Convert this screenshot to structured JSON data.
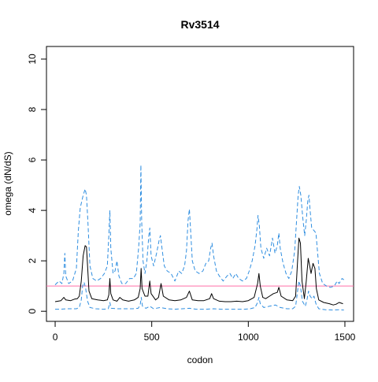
{
  "chart_data": {
    "type": "line",
    "title": "Rv3514",
    "xlabel": "codon",
    "ylabel": "omega (dN/dS)",
    "xlim": [
      -45,
      1545
    ],
    "ylim": [
      -0.4,
      10.5
    ],
    "xticks": [
      0,
      500,
      1000,
      1500
    ],
    "yticks": [
      0,
      2,
      4,
      6,
      8,
      10
    ],
    "grid": false,
    "legend": "none",
    "colors": {
      "estimate": "#000000",
      "bounds": "#2f8ee0",
      "reference": "#ff6fa8"
    },
    "reference_line": {
      "y": 1
    },
    "series": [
      {
        "role": "estimate",
        "points": [
          [
            0,
            0.38
          ],
          [
            30,
            0.42
          ],
          [
            45,
            0.55
          ],
          [
            55,
            0.45
          ],
          [
            80,
            0.42
          ],
          [
            100,
            0.48
          ],
          [
            115,
            0.5
          ],
          [
            125,
            0.6
          ],
          [
            135,
            1.2
          ],
          [
            145,
            2.2
          ],
          [
            155,
            2.6
          ],
          [
            162,
            2.55
          ],
          [
            168,
            1.8
          ],
          [
            175,
            0.8
          ],
          [
            190,
            0.5
          ],
          [
            220,
            0.45
          ],
          [
            250,
            0.42
          ],
          [
            270,
            0.45
          ],
          [
            278,
            0.65
          ],
          [
            283,
            1.3
          ],
          [
            288,
            0.7
          ],
          [
            300,
            0.45
          ],
          [
            320,
            0.4
          ],
          [
            335,
            0.55
          ],
          [
            350,
            0.45
          ],
          [
            380,
            0.4
          ],
          [
            410,
            0.45
          ],
          [
            430,
            0.55
          ],
          [
            440,
            0.9
          ],
          [
            445,
            1.7
          ],
          [
            450,
            0.9
          ],
          [
            465,
            0.6
          ],
          [
            480,
            0.6
          ],
          [
            490,
            1.2
          ],
          [
            497,
            0.7
          ],
          [
            520,
            0.45
          ],
          [
            535,
            0.55
          ],
          [
            548,
            1.1
          ],
          [
            560,
            0.6
          ],
          [
            590,
            0.45
          ],
          [
            620,
            0.42
          ],
          [
            650,
            0.45
          ],
          [
            680,
            0.55
          ],
          [
            695,
            0.8
          ],
          [
            710,
            0.45
          ],
          [
            740,
            0.42
          ],
          [
            770,
            0.42
          ],
          [
            800,
            0.5
          ],
          [
            810,
            0.7
          ],
          [
            820,
            0.5
          ],
          [
            850,
            0.4
          ],
          [
            880,
            0.38
          ],
          [
            910,
            0.38
          ],
          [
            940,
            0.4
          ],
          [
            970,
            0.38
          ],
          [
            1000,
            0.42
          ],
          [
            1030,
            0.55
          ],
          [
            1048,
            1.1
          ],
          [
            1055,
            1.5
          ],
          [
            1062,
            1.0
          ],
          [
            1075,
            0.55
          ],
          [
            1090,
            0.5
          ],
          [
            1110,
            0.6
          ],
          [
            1130,
            0.7
          ],
          [
            1150,
            0.75
          ],
          [
            1158,
            0.95
          ],
          [
            1170,
            0.6
          ],
          [
            1200,
            0.45
          ],
          [
            1230,
            0.42
          ],
          [
            1245,
            0.6
          ],
          [
            1255,
            2.0
          ],
          [
            1262,
            2.9
          ],
          [
            1270,
            2.7
          ],
          [
            1278,
            1.2
          ],
          [
            1290,
            0.5
          ],
          [
            1300,
            1.2
          ],
          [
            1310,
            2.1
          ],
          [
            1318,
            1.8
          ],
          [
            1325,
            1.5
          ],
          [
            1335,
            1.9
          ],
          [
            1345,
            1.7
          ],
          [
            1352,
            0.9
          ],
          [
            1365,
            0.45
          ],
          [
            1390,
            0.35
          ],
          [
            1420,
            0.3
          ],
          [
            1440,
            0.25
          ],
          [
            1455,
            0.28
          ],
          [
            1470,
            0.35
          ],
          [
            1490,
            0.3
          ]
        ]
      },
      {
        "role": "upper",
        "points": [
          [
            0,
            1.05
          ],
          [
            20,
            1.2
          ],
          [
            35,
            1.1
          ],
          [
            45,
            1.5
          ],
          [
            50,
            2.3
          ],
          [
            55,
            1.4
          ],
          [
            70,
            1.1
          ],
          [
            90,
            1.2
          ],
          [
            110,
            1.7
          ],
          [
            120,
            3.2
          ],
          [
            130,
            4.1
          ],
          [
            145,
            4.6
          ],
          [
            155,
            4.85
          ],
          [
            162,
            4.6
          ],
          [
            170,
            3.5
          ],
          [
            180,
            1.8
          ],
          [
            195,
            1.3
          ],
          [
            215,
            1.2
          ],
          [
            235,
            1.3
          ],
          [
            255,
            1.5
          ],
          [
            270,
            1.8
          ],
          [
            278,
            3.0
          ],
          [
            283,
            4.0
          ],
          [
            288,
            2.5
          ],
          [
            300,
            1.5
          ],
          [
            310,
            1.6
          ],
          [
            320,
            2.0
          ],
          [
            330,
            1.4
          ],
          [
            345,
            1.1
          ],
          [
            365,
            1.1
          ],
          [
            385,
            1.3
          ],
          [
            405,
            1.3
          ],
          [
            420,
            1.5
          ],
          [
            432,
            2.5
          ],
          [
            440,
            3.5
          ],
          [
            444,
            5.8
          ],
          [
            448,
            3.6
          ],
          [
            455,
            2.0
          ],
          [
            465,
            1.5
          ],
          [
            475,
            2.0
          ],
          [
            485,
            3.0
          ],
          [
            490,
            3.3
          ],
          [
            497,
            2.2
          ],
          [
            510,
            1.8
          ],
          [
            525,
            2.3
          ],
          [
            538,
            2.8
          ],
          [
            545,
            3.0
          ],
          [
            553,
            2.5
          ],
          [
            565,
            1.8
          ],
          [
            580,
            1.6
          ],
          [
            600,
            1.5
          ],
          [
            620,
            1.2
          ],
          [
            640,
            1.6
          ],
          [
            655,
            1.5
          ],
          [
            670,
            1.8
          ],
          [
            680,
            2.4
          ],
          [
            688,
            3.6
          ],
          [
            695,
            4.05
          ],
          [
            700,
            3.4
          ],
          [
            710,
            2.0
          ],
          [
            725,
            1.6
          ],
          [
            745,
            1.5
          ],
          [
            765,
            1.6
          ],
          [
            780,
            1.9
          ],
          [
            795,
            2.0
          ],
          [
            805,
            2.5
          ],
          [
            812,
            2.7
          ],
          [
            820,
            2.2
          ],
          [
            835,
            1.6
          ],
          [
            850,
            1.4
          ],
          [
            870,
            1.2
          ],
          [
            890,
            1.4
          ],
          [
            905,
            1.5
          ],
          [
            920,
            1.3
          ],
          [
            935,
            1.5
          ],
          [
            950,
            1.3
          ],
          [
            970,
            1.2
          ],
          [
            990,
            1.3
          ],
          [
            1005,
            1.6
          ],
          [
            1020,
            2.0
          ],
          [
            1035,
            2.6
          ],
          [
            1045,
            3.3
          ],
          [
            1050,
            3.8
          ],
          [
            1057,
            3.4
          ],
          [
            1065,
            2.5
          ],
          [
            1080,
            2.1
          ],
          [
            1095,
            2.5
          ],
          [
            1110,
            2.2
          ],
          [
            1125,
            2.9
          ],
          [
            1138,
            2.3
          ],
          [
            1150,
            2.6
          ],
          [
            1158,
            3.1
          ],
          [
            1165,
            2.5
          ],
          [
            1180,
            1.9
          ],
          [
            1195,
            1.5
          ],
          [
            1210,
            1.3
          ],
          [
            1225,
            1.6
          ],
          [
            1240,
            2.4
          ],
          [
            1250,
            3.6
          ],
          [
            1258,
            4.6
          ],
          [
            1264,
            4.95
          ],
          [
            1272,
            4.6
          ],
          [
            1282,
            3.7
          ],
          [
            1292,
            3.0
          ],
          [
            1300,
            3.6
          ],
          [
            1308,
            4.4
          ],
          [
            1314,
            4.6
          ],
          [
            1320,
            4.0
          ],
          [
            1328,
            3.3
          ],
          [
            1340,
            3.2
          ],
          [
            1350,
            3.1
          ],
          [
            1358,
            2.4
          ],
          [
            1368,
            1.5
          ],
          [
            1385,
            1.1
          ],
          [
            1405,
            1.0
          ],
          [
            1425,
            0.95
          ],
          [
            1445,
            1.0
          ],
          [
            1460,
            1.2
          ],
          [
            1470,
            1.1
          ],
          [
            1485,
            1.3
          ],
          [
            1495,
            1.25
          ]
        ]
      },
      {
        "role": "lower",
        "points": [
          [
            0,
            0.08
          ],
          [
            30,
            0.08
          ],
          [
            60,
            0.1
          ],
          [
            90,
            0.1
          ],
          [
            110,
            0.1
          ],
          [
            125,
            0.15
          ],
          [
            135,
            0.45
          ],
          [
            142,
            1.0
          ],
          [
            150,
            1.15
          ],
          [
            158,
            0.9
          ],
          [
            168,
            0.4
          ],
          [
            180,
            0.15
          ],
          [
            210,
            0.1
          ],
          [
            250,
            0.08
          ],
          [
            275,
            0.1
          ],
          [
            283,
            0.35
          ],
          [
            290,
            0.12
          ],
          [
            320,
            0.1
          ],
          [
            360,
            0.1
          ],
          [
            400,
            0.1
          ],
          [
            430,
            0.12
          ],
          [
            440,
            0.25
          ],
          [
            446,
            0.55
          ],
          [
            452,
            0.2
          ],
          [
            470,
            0.12
          ],
          [
            490,
            0.2
          ],
          [
            510,
            0.1
          ],
          [
            545,
            0.15
          ],
          [
            580,
            0.1
          ],
          [
            620,
            0.08
          ],
          [
            660,
            0.1
          ],
          [
            695,
            0.12
          ],
          [
            730,
            0.08
          ],
          [
            780,
            0.08
          ],
          [
            820,
            0.1
          ],
          [
            860,
            0.08
          ],
          [
            900,
            0.08
          ],
          [
            940,
            0.08
          ],
          [
            980,
            0.08
          ],
          [
            1010,
            0.1
          ],
          [
            1035,
            0.15
          ],
          [
            1048,
            0.35
          ],
          [
            1055,
            0.55
          ],
          [
            1062,
            0.3
          ],
          [
            1080,
            0.15
          ],
          [
            1110,
            0.2
          ],
          [
            1140,
            0.25
          ],
          [
            1165,
            0.15
          ],
          [
            1200,
            0.1
          ],
          [
            1230,
            0.1
          ],
          [
            1245,
            0.2
          ],
          [
            1255,
            0.8
          ],
          [
            1262,
            1.2
          ],
          [
            1270,
            1.0
          ],
          [
            1280,
            0.4
          ],
          [
            1295,
            0.2
          ],
          [
            1305,
            0.5
          ],
          [
            1312,
            0.8
          ],
          [
            1320,
            0.6
          ],
          [
            1330,
            0.5
          ],
          [
            1340,
            0.6
          ],
          [
            1350,
            0.3
          ],
          [
            1365,
            0.1
          ],
          [
            1400,
            0.06
          ],
          [
            1440,
            0.05
          ],
          [
            1470,
            0.06
          ],
          [
            1495,
            0.05
          ]
        ]
      }
    ]
  }
}
